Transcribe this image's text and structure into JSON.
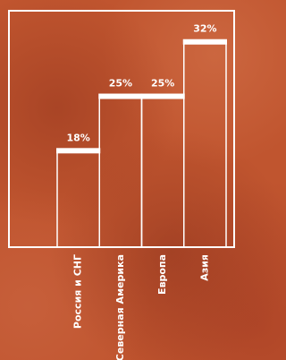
{
  "chart_data": {
    "type": "bar",
    "categories": [
      "Россия и СНГ",
      "Северная Америка",
      "Европа",
      "Азия"
    ],
    "values": [
      18,
      25,
      25,
      32
    ],
    "value_labels": [
      "18%",
      "25%",
      "25%",
      "32%"
    ],
    "color": "#ffffff",
    "ylim": [
      5.6,
      36
    ]
  }
}
